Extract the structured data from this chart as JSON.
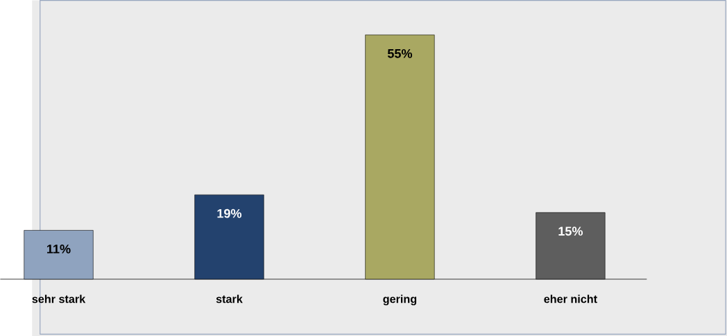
{
  "chart_data": {
    "type": "bar",
    "categories": [
      "sehr stark",
      "stark",
      "gering",
      "eher nicht"
    ],
    "values": [
      11,
      19,
      55,
      15
    ],
    "colors": [
      "#8fa3bf",
      "#23426e",
      "#a9a862",
      "#5e5e5e"
    ],
    "value_labels": [
      "11%",
      "19%",
      "55%",
      "15%"
    ]
  }
}
